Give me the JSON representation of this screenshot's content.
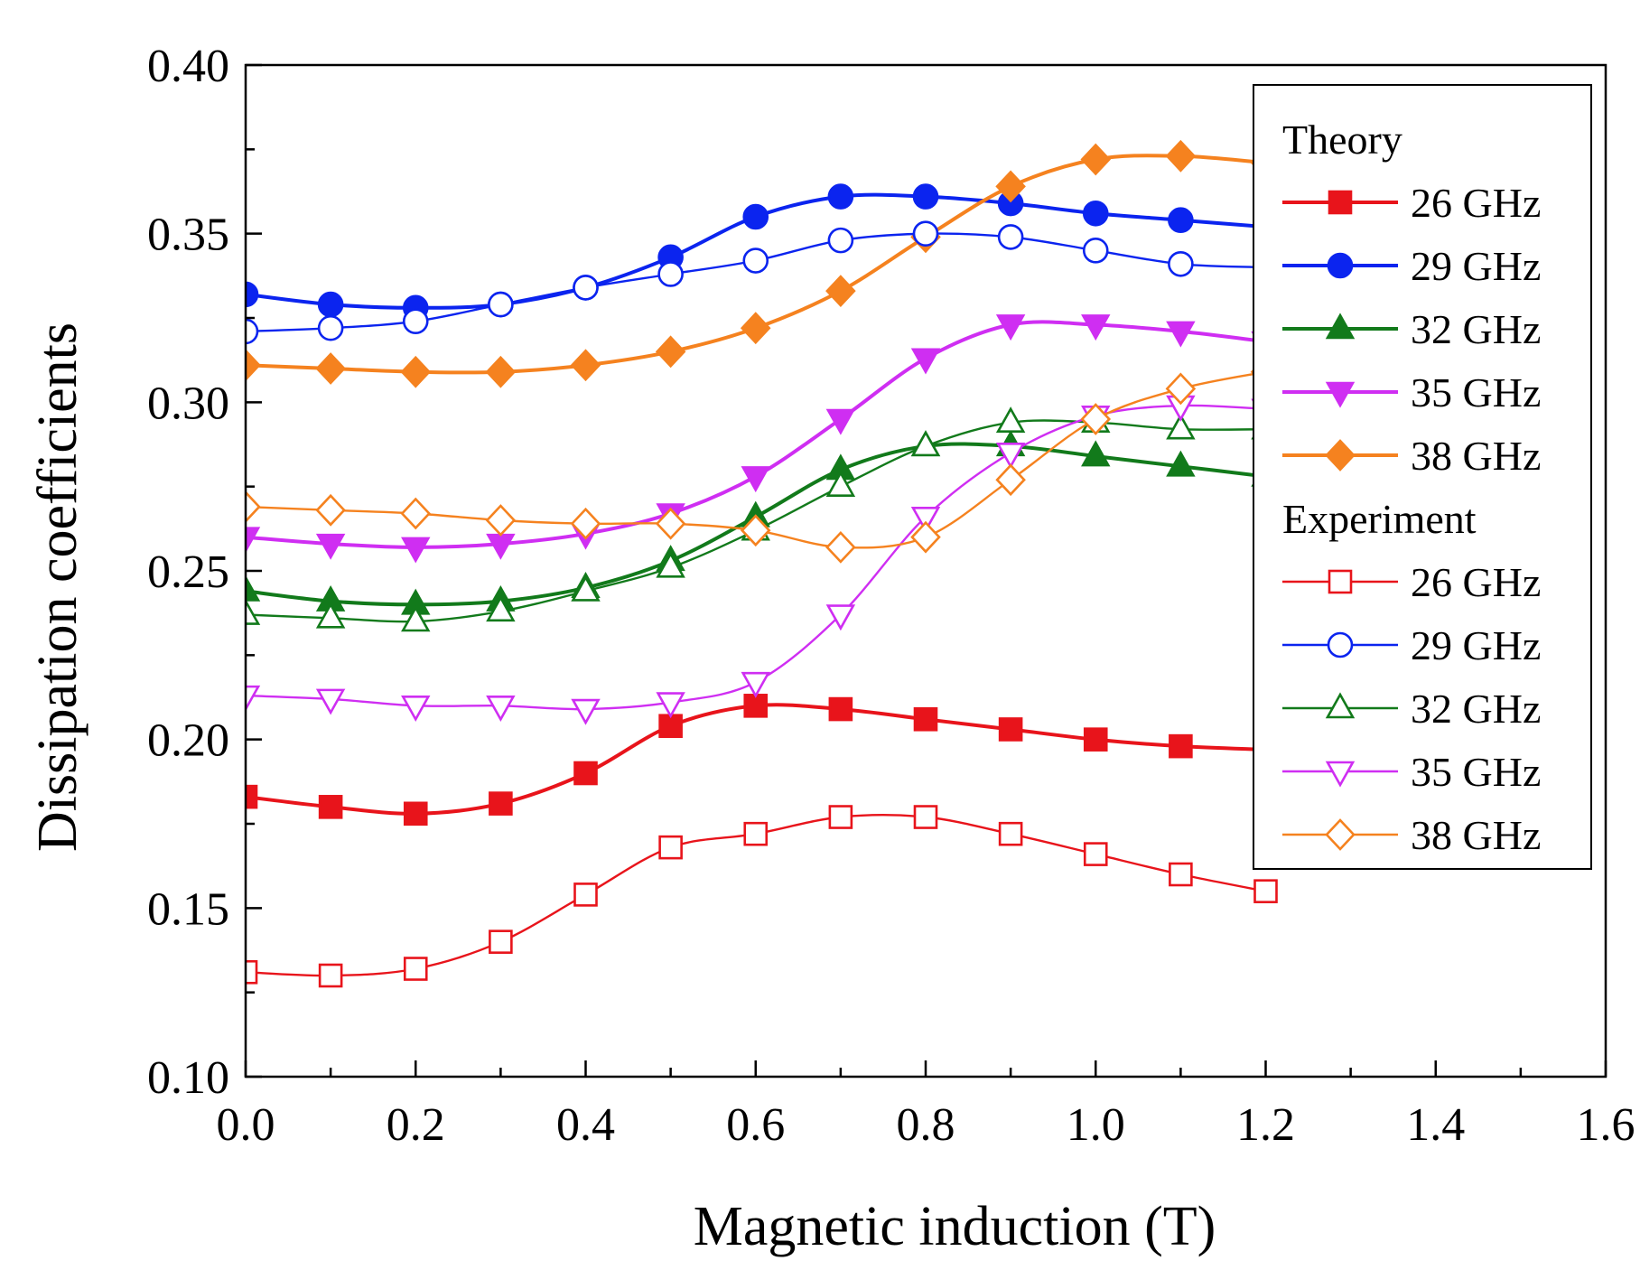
{
  "chart_data": {
    "type": "line",
    "title": "",
    "xlabel": "Magnetic induction (T)",
    "ylabel": "Dissipation coefficients",
    "xlim": [
      0.0,
      1.6
    ],
    "ylim": [
      0.1,
      0.4
    ],
    "xticks": [
      "0.0",
      "0.2",
      "0.4",
      "0.6",
      "0.8",
      "1.0",
      "1.2",
      "1.4",
      "1.6"
    ],
    "yticks": [
      "0.10",
      "0.15",
      "0.20",
      "0.25",
      "0.30",
      "0.35",
      "0.40"
    ],
    "grid": false,
    "legend_position": "top-right",
    "x": [
      0.0,
      0.1,
      0.2,
      0.3,
      0.4,
      0.5,
      0.6,
      0.7,
      0.8,
      0.9,
      1.0,
      1.1,
      1.2
    ],
    "legend_groups": [
      "Theory",
      "Experiment"
    ],
    "series": [
      {
        "group": "Theory",
        "name": "26 GHz",
        "color": "#e8141b",
        "marker": "square",
        "filled": true,
        "values": [
          0.183,
          0.18,
          0.178,
          0.181,
          0.19,
          0.204,
          0.21,
          0.209,
          0.206,
          0.203,
          0.2,
          0.198,
          0.197
        ]
      },
      {
        "group": "Theory",
        "name": "29 GHz",
        "color": "#0b24ef",
        "marker": "circle",
        "filled": true,
        "values": [
          0.332,
          0.329,
          0.328,
          0.329,
          0.334,
          0.343,
          0.355,
          0.361,
          0.361,
          0.359,
          0.356,
          0.354,
          0.352
        ]
      },
      {
        "group": "Theory",
        "name": "32 GHz",
        "color": "#127a1b",
        "marker": "triangle-up",
        "filled": true,
        "values": [
          0.244,
          0.241,
          0.24,
          0.241,
          0.245,
          0.253,
          0.266,
          0.28,
          0.287,
          0.287,
          0.284,
          0.281,
          0.278
        ]
      },
      {
        "group": "Theory",
        "name": "35 GHz",
        "color": "#cf2ef2",
        "marker": "triangle-down",
        "filled": true,
        "values": [
          0.26,
          0.258,
          0.257,
          0.258,
          0.261,
          0.267,
          0.278,
          0.295,
          0.313,
          0.323,
          0.323,
          0.321,
          0.318
        ]
      },
      {
        "group": "Theory",
        "name": "38 GHz",
        "color": "#f5821f",
        "marker": "diamond",
        "filled": true,
        "values": [
          0.311,
          0.31,
          0.309,
          0.309,
          0.311,
          0.315,
          0.322,
          0.333,
          0.349,
          0.364,
          0.372,
          0.373,
          0.371
        ]
      },
      {
        "group": "Experiment",
        "name": "26 GHz",
        "color": "#e8141b",
        "marker": "square",
        "filled": false,
        "values": [
          0.131,
          0.13,
          0.132,
          0.14,
          0.154,
          0.168,
          0.172,
          0.177,
          0.177,
          0.172,
          0.166,
          0.16,
          0.155
        ]
      },
      {
        "group": "Experiment",
        "name": "29 GHz",
        "color": "#0b24ef",
        "marker": "circle",
        "filled": false,
        "values": [
          0.321,
          0.322,
          0.324,
          0.329,
          0.334,
          0.338,
          0.342,
          0.348,
          0.35,
          0.349,
          0.345,
          0.341,
          0.34
        ]
      },
      {
        "group": "Experiment",
        "name": "32 GHz",
        "color": "#127a1b",
        "marker": "triangle-up",
        "filled": false,
        "values": [
          0.237,
          0.236,
          0.235,
          0.238,
          0.244,
          0.251,
          0.262,
          0.275,
          0.287,
          0.294,
          0.294,
          0.292,
          0.292
        ]
      },
      {
        "group": "Experiment",
        "name": "35 GHz",
        "color": "#cf2ef2",
        "marker": "triangle-down",
        "filled": false,
        "values": [
          0.213,
          0.212,
          0.21,
          0.21,
          0.209,
          0.211,
          0.217,
          0.237,
          0.266,
          0.285,
          0.296,
          0.299,
          0.298
        ]
      },
      {
        "group": "Experiment",
        "name": "38 GHz",
        "color": "#f5821f",
        "marker": "diamond",
        "filled": false,
        "values": [
          0.269,
          0.268,
          0.267,
          0.265,
          0.264,
          0.264,
          0.262,
          0.257,
          0.26,
          0.277,
          0.295,
          0.304,
          0.309
        ]
      }
    ]
  }
}
